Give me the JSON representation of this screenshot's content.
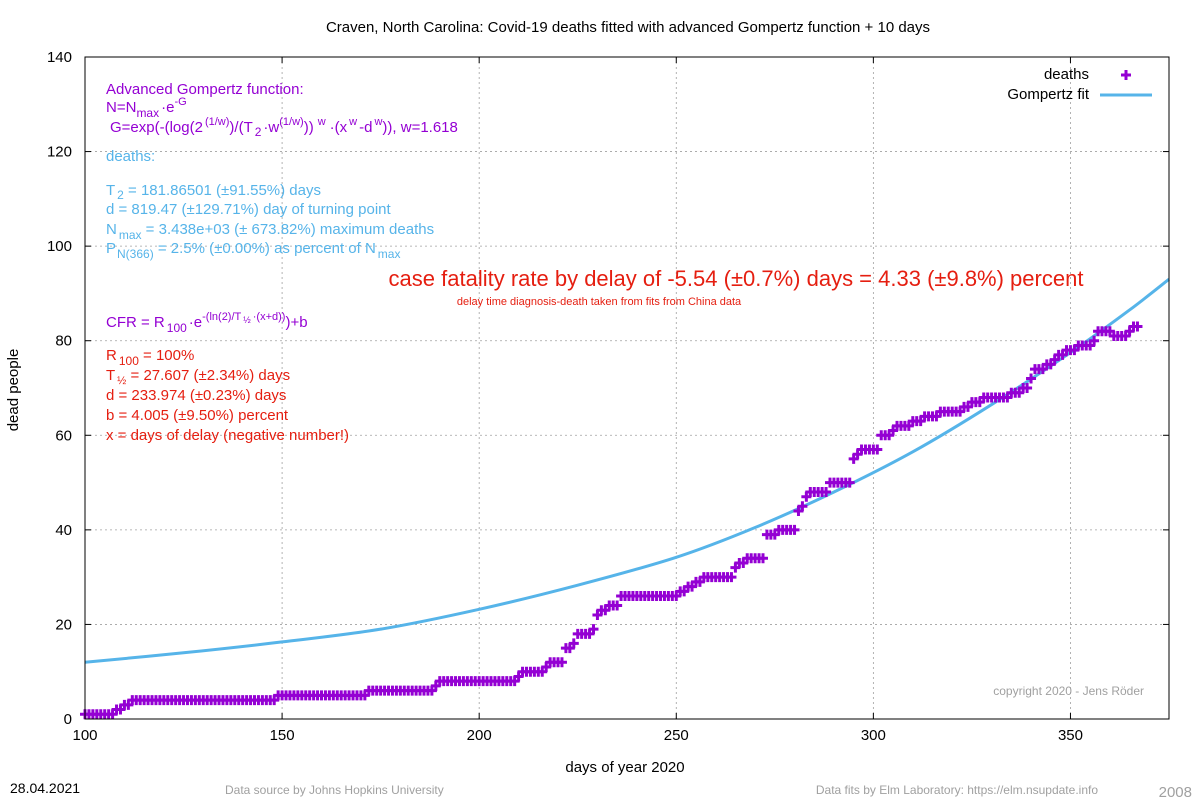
{
  "chart_data": {
    "type": "scatter",
    "title": "Craven,  North Carolina: Covid-19 deaths fitted with advanced Gompertz function + 10 days",
    "xlabel": "days of year 2020",
    "ylabel": "dead people",
    "xlim": [
      100,
      375
    ],
    "ylim": [
      0,
      140
    ],
    "xticks": [
      100,
      150,
      200,
      250,
      300,
      350
    ],
    "yticks": [
      0,
      20,
      40,
      60,
      80,
      100,
      120,
      140
    ],
    "grid": true,
    "legend_position": "top-right",
    "legend": [
      {
        "name": "deaths",
        "color": "#9400d3",
        "marker": "plus"
      },
      {
        "name": "Gompertz fit",
        "color": "#56b4e9",
        "marker": "line"
      }
    ],
    "series": [
      {
        "name": "deaths",
        "color": "#9400d3",
        "points": [
          [
            100,
            1
          ],
          [
            101,
            1
          ],
          [
            102,
            1
          ],
          [
            103,
            1
          ],
          [
            104,
            1
          ],
          [
            105,
            1
          ],
          [
            106,
            1
          ],
          [
            107,
            1
          ],
          [
            108,
            2
          ],
          [
            109,
            2
          ],
          [
            110,
            3
          ],
          [
            111,
            3
          ],
          [
            112,
            4
          ],
          [
            113,
            4
          ],
          [
            114,
            4
          ],
          [
            115,
            4
          ],
          [
            116,
            4
          ],
          [
            117,
            4
          ],
          [
            118,
            4
          ],
          [
            119,
            4
          ],
          [
            120,
            4
          ],
          [
            121,
            4
          ],
          [
            122,
            4
          ],
          [
            123,
            4
          ],
          [
            124,
            4
          ],
          [
            125,
            4
          ],
          [
            126,
            4
          ],
          [
            127,
            4
          ],
          [
            128,
            4
          ],
          [
            129,
            4
          ],
          [
            130,
            4
          ],
          [
            131,
            4
          ],
          [
            132,
            4
          ],
          [
            133,
            4
          ],
          [
            134,
            4
          ],
          [
            135,
            4
          ],
          [
            136,
            4
          ],
          [
            137,
            4
          ],
          [
            138,
            4
          ],
          [
            139,
            4
          ],
          [
            140,
            4
          ],
          [
            141,
            4
          ],
          [
            142,
            4
          ],
          [
            143,
            4
          ],
          [
            144,
            4
          ],
          [
            145,
            4
          ],
          [
            146,
            4
          ],
          [
            147,
            4
          ],
          [
            148,
            4
          ],
          [
            149,
            5
          ],
          [
            150,
            5
          ],
          [
            151,
            5
          ],
          [
            152,
            5
          ],
          [
            153,
            5
          ],
          [
            154,
            5
          ],
          [
            155,
            5
          ],
          [
            156,
            5
          ],
          [
            157,
            5
          ],
          [
            158,
            5
          ],
          [
            159,
            5
          ],
          [
            160,
            5
          ],
          [
            161,
            5
          ],
          [
            162,
            5
          ],
          [
            163,
            5
          ],
          [
            164,
            5
          ],
          [
            165,
            5
          ],
          [
            166,
            5
          ],
          [
            167,
            5
          ],
          [
            168,
            5
          ],
          [
            169,
            5
          ],
          [
            170,
            5
          ],
          [
            171,
            5
          ],
          [
            172,
            6
          ],
          [
            173,
            6
          ],
          [
            174,
            6
          ],
          [
            175,
            6
          ],
          [
            176,
            6
          ],
          [
            177,
            6
          ],
          [
            178,
            6
          ],
          [
            179,
            6
          ],
          [
            180,
            6
          ],
          [
            181,
            6
          ],
          [
            182,
            6
          ],
          [
            183,
            6
          ],
          [
            184,
            6
          ],
          [
            185,
            6
          ],
          [
            186,
            6
          ],
          [
            187,
            6
          ],
          [
            188,
            6
          ],
          [
            189,
            7
          ],
          [
            190,
            8
          ],
          [
            191,
            8
          ],
          [
            192,
            8
          ],
          [
            193,
            8
          ],
          [
            194,
            8
          ],
          [
            195,
            8
          ],
          [
            196,
            8
          ],
          [
            197,
            8
          ],
          [
            198,
            8
          ],
          [
            199,
            8
          ],
          [
            200,
            8
          ],
          [
            201,
            8
          ],
          [
            202,
            8
          ],
          [
            203,
            8
          ],
          [
            204,
            8
          ],
          [
            205,
            8
          ],
          [
            206,
            8
          ],
          [
            207,
            8
          ],
          [
            208,
            8
          ],
          [
            209,
            8
          ],
          [
            210,
            9
          ],
          [
            211,
            10
          ],
          [
            212,
            10
          ],
          [
            213,
            10
          ],
          [
            214,
            10
          ],
          [
            215,
            10
          ],
          [
            216,
            10
          ],
          [
            217,
            11
          ],
          [
            218,
            12
          ],
          [
            219,
            12
          ],
          [
            220,
            12
          ],
          [
            221,
            12
          ],
          [
            222,
            15
          ],
          [
            223,
            15
          ],
          [
            224,
            16
          ],
          [
            225,
            18
          ],
          [
            226,
            18
          ],
          [
            227,
            18
          ],
          [
            228,
            18
          ],
          [
            229,
            19
          ],
          [
            230,
            22
          ],
          [
            231,
            23
          ],
          [
            232,
            23
          ],
          [
            233,
            24
          ],
          [
            234,
            24
          ],
          [
            235,
            24
          ],
          [
            236,
            26
          ],
          [
            237,
            26
          ],
          [
            238,
            26
          ],
          [
            239,
            26
          ],
          [
            240,
            26
          ],
          [
            241,
            26
          ],
          [
            242,
            26
          ],
          [
            243,
            26
          ],
          [
            244,
            26
          ],
          [
            245,
            26
          ],
          [
            246,
            26
          ],
          [
            247,
            26
          ],
          [
            248,
            26
          ],
          [
            249,
            26
          ],
          [
            250,
            26
          ],
          [
            251,
            27
          ],
          [
            252,
            27
          ],
          [
            253,
            28
          ],
          [
            254,
            28
          ],
          [
            255,
            29
          ],
          [
            256,
            29
          ],
          [
            257,
            30
          ],
          [
            258,
            30
          ],
          [
            259,
            30
          ],
          [
            260,
            30
          ],
          [
            261,
            30
          ],
          [
            262,
            30
          ],
          [
            263,
            30
          ],
          [
            264,
            30
          ],
          [
            265,
            32
          ],
          [
            266,
            33
          ],
          [
            267,
            33
          ],
          [
            268,
            34
          ],
          [
            269,
            34
          ],
          [
            270,
            34
          ],
          [
            271,
            34
          ],
          [
            272,
            34
          ],
          [
            273,
            39
          ],
          [
            274,
            39
          ],
          [
            275,
            39
          ],
          [
            276,
            40
          ],
          [
            277,
            40
          ],
          [
            278,
            40
          ],
          [
            279,
            40
          ],
          [
            280,
            40
          ],
          [
            281,
            44
          ],
          [
            282,
            45
          ],
          [
            283,
            47
          ],
          [
            284,
            48
          ],
          [
            285,
            48
          ],
          [
            286,
            48
          ],
          [
            287,
            48
          ],
          [
            288,
            48
          ],
          [
            289,
            50
          ],
          [
            290,
            50
          ],
          [
            291,
            50
          ],
          [
            292,
            50
          ],
          [
            293,
            50
          ],
          [
            294,
            50
          ],
          [
            295,
            55
          ],
          [
            296,
            56
          ],
          [
            297,
            57
          ],
          [
            298,
            57
          ],
          [
            299,
            57
          ],
          [
            300,
            57
          ],
          [
            301,
            57
          ],
          [
            302,
            60
          ],
          [
            303,
            60
          ],
          [
            304,
            60
          ],
          [
            305,
            61
          ],
          [
            306,
            62
          ],
          [
            307,
            62
          ],
          [
            308,
            62
          ],
          [
            309,
            62
          ],
          [
            310,
            63
          ],
          [
            311,
            63
          ],
          [
            312,
            63
          ],
          [
            313,
            64
          ],
          [
            314,
            64
          ],
          [
            315,
            64
          ],
          [
            316,
            64
          ],
          [
            317,
            65
          ],
          [
            318,
            65
          ],
          [
            319,
            65
          ],
          [
            320,
            65
          ],
          [
            321,
            65
          ],
          [
            322,
            65
          ],
          [
            323,
            66
          ],
          [
            324,
            66
          ],
          [
            325,
            67
          ],
          [
            326,
            67
          ],
          [
            327,
            67
          ],
          [
            328,
            68
          ],
          [
            329,
            68
          ],
          [
            330,
            68
          ],
          [
            331,
            68
          ],
          [
            332,
            68
          ],
          [
            333,
            68
          ],
          [
            334,
            68
          ],
          [
            335,
            69
          ],
          [
            336,
            69
          ],
          [
            337,
            69
          ],
          [
            338,
            70
          ],
          [
            339,
            70
          ],
          [
            340,
            72
          ],
          [
            341,
            74
          ],
          [
            342,
            74
          ],
          [
            343,
            74
          ],
          [
            344,
            75
          ],
          [
            345,
            75
          ],
          [
            346,
            76
          ],
          [
            347,
            77
          ],
          [
            348,
            77
          ],
          [
            349,
            78
          ],
          [
            350,
            78
          ],
          [
            351,
            78
          ],
          [
            352,
            79
          ],
          [
            353,
            79
          ],
          [
            354,
            79
          ],
          [
            355,
            79
          ],
          [
            356,
            80
          ],
          [
            357,
            82
          ],
          [
            358,
            82
          ],
          [
            359,
            82
          ],
          [
            360,
            82
          ],
          [
            361,
            81
          ],
          [
            362,
            81
          ],
          [
            363,
            81
          ],
          [
            364,
            81
          ],
          [
            365,
            82
          ],
          [
            366,
            83
          ],
          [
            367,
            83
          ]
        ]
      },
      {
        "name": "Gompertz fit",
        "color": "#56b4e9",
        "points": [
          [
            100,
            12
          ],
          [
            125,
            14
          ],
          [
            150,
            16.3
          ],
          [
            175,
            19
          ],
          [
            200,
            23.2
          ],
          [
            225,
            28.3
          ],
          [
            250,
            34.2
          ],
          [
            270,
            40.5
          ],
          [
            290,
            48
          ],
          [
            310,
            56.5
          ],
          [
            330,
            66.5
          ],
          [
            350,
            77.5
          ],
          [
            365,
            86.5
          ],
          [
            375,
            93
          ]
        ]
      }
    ],
    "annotations": {
      "formula": {
        "header": "Advanced Gompertz function:",
        "line_n": "N=N",
        "line_n_sub": "max",
        "line_n_rest": "·e",
        "line_n_sup": "-G",
        "line_g_a": "G=exp(-(log(2",
        "line_g_sup1": "(1/w)",
        "line_g_b": ")/(T",
        "line_g_sub2": "2",
        "line_g_c": "·w",
        "line_g_sup2": "(1/w)",
        "line_g_d": "))",
        "line_g_sup3": "w",
        "line_g_e": "·(x",
        "line_g_sup4": "w",
        "line_g_f": "-d",
        "line_g_sup5": "w",
        "line_g_g": ")), w=1.618"
      },
      "fit": {
        "label": "deaths:",
        "t2_a": "T",
        "t2_sub": "2",
        "t2_b": " = 181.86501 (±91.55%) days",
        "d": "d = 819.47 (±129.71%) day of turning point",
        "nmax_a": "N",
        "nmax_sub": "max",
        "nmax_b": " = 3.438e+03 (± 673.82%) maximum deaths",
        "p_a": "P",
        "p_sub": "N(366)",
        "p_b": " = 2.5% (±0.00%) as percent of N",
        "p_sub2": "max"
      },
      "cfr_headline": "case fatality rate by delay of -5.54 (±0.7%) days = 4.33 (±9.8%) percent",
      "cfr_note": "delay time diagnosis-death taken from fits from China data",
      "cfr_formula": {
        "a": "CFR = R",
        "sub1": "100",
        "b": "·e",
        "sup": "-(ln(2)/T",
        "sup_sub": "½",
        "sup_b": "·(x+d))",
        "c": ")+b"
      },
      "cfr_params": {
        "r_a": "R",
        "r_sub": "100",
        "r_b": " = 100%",
        "t_a": "T",
        "t_sub": "½",
        "t_b": " = 27.607 (±2.34%) days",
        "d": "d = 233.974 (±0.23%) days",
        "b": "b = 4.005 (±9.50%) percent",
        "x": "x = days of delay (negative number!)"
      },
      "copyright": "copyright 2020 - Jens Röder"
    },
    "footer": {
      "date": "28.04.2021",
      "source": "Data source by Johns Hopkins University",
      "fits": "Data fits by Elm Laboratory: https://elm.nsupdate.info",
      "code": "2008"
    },
    "colors": {
      "purple": "#9400d3",
      "blue": "#56b4e9",
      "red": "#e51e10",
      "grid": "#a0a0a0"
    }
  }
}
